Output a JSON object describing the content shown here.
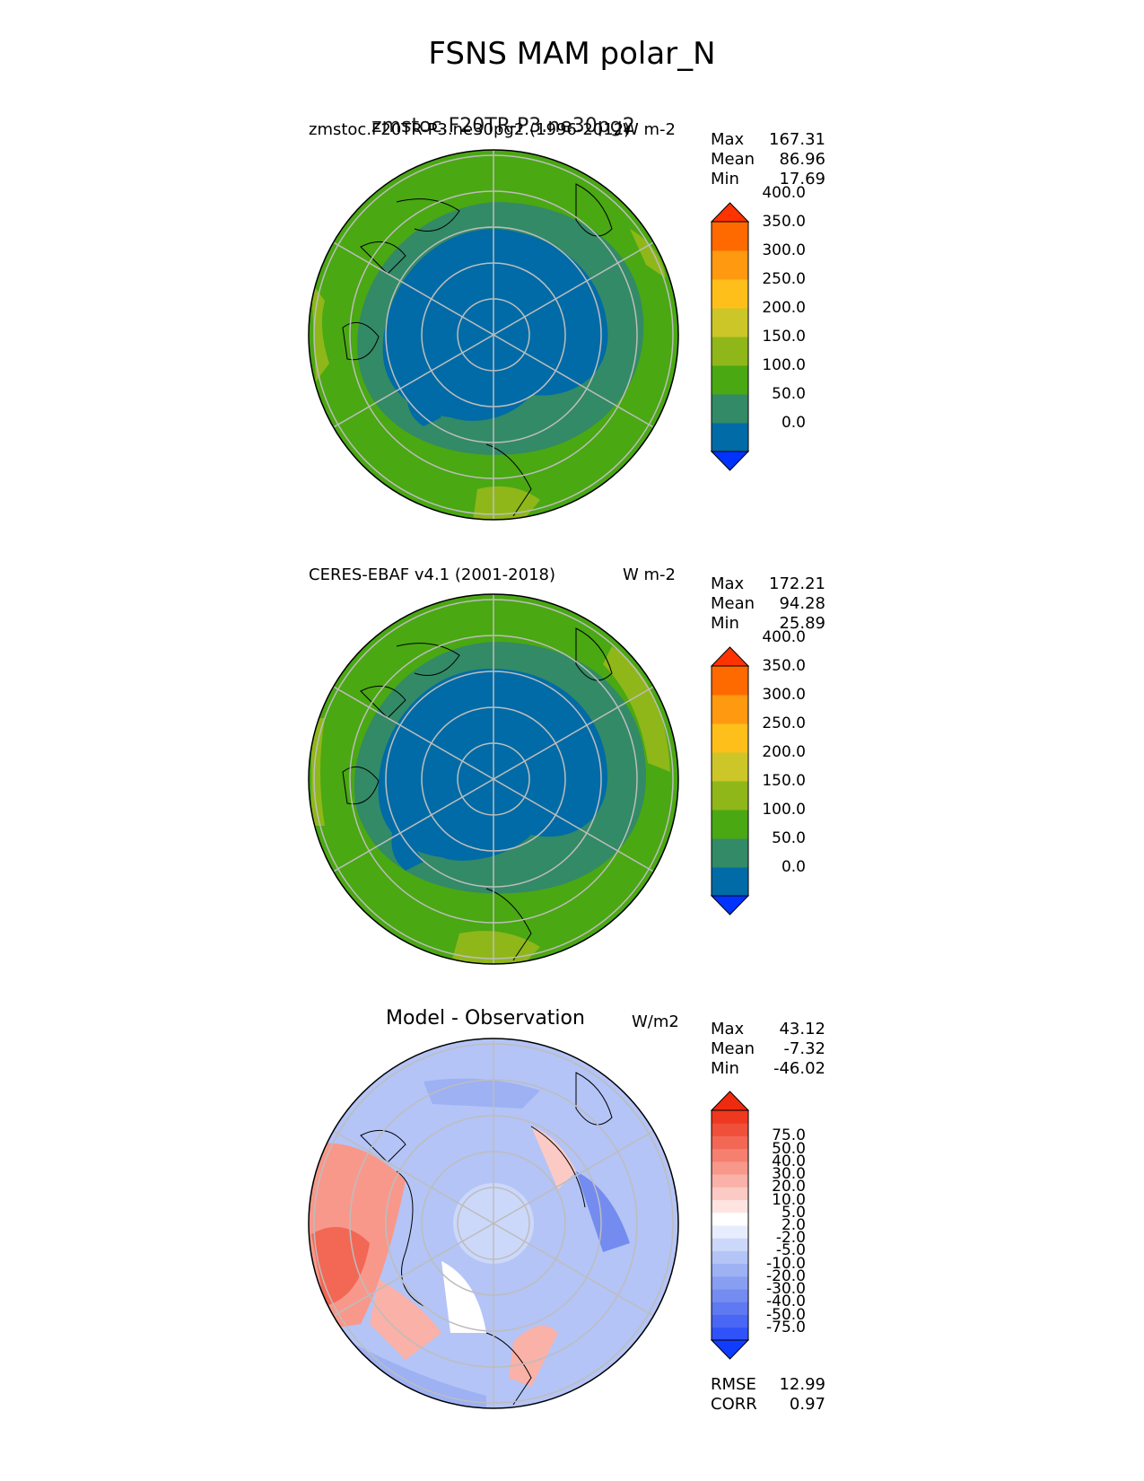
{
  "title": "FSNS MAM polar_N",
  "panels": [
    {
      "name": "test",
      "left_title": "zmstoc.F20TR-P3.ne30pg2.(1996-2012)",
      "left_title_overlay": "zmstoc.F20TR-P3.ne30pg2",
      "right_title": "W m-2",
      "stats": [
        {
          "label": "Max",
          "value": "167.31"
        },
        {
          "label": "Mean",
          "value": "86.96"
        },
        {
          "label": "Min",
          "value": "17.69"
        }
      ],
      "colorbar": {
        "colors": [
          "#0033ff",
          "#006ba6",
          "#338a66",
          "#4aa813",
          "#8fb719",
          "#ccc628",
          "#ffbf1a",
          "#ff9910",
          "#ff6a00",
          "#ff3300"
        ],
        "labels": [
          "0.0",
          "50.0",
          "100.0",
          "150.0",
          "200.0",
          "250.0",
          "300.0",
          "350.0",
          "400.0"
        ]
      }
    },
    {
      "name": "reference",
      "left_title": "CERES-EBAF v4.1 (2001-2018)",
      "right_title": "W m-2",
      "stats": [
        {
          "label": "Max",
          "value": "172.21"
        },
        {
          "label": "Mean",
          "value": "94.28"
        },
        {
          "label": "Min",
          "value": "25.89"
        }
      ],
      "colorbar": {
        "colors": [
          "#0033ff",
          "#006ba6",
          "#338a66",
          "#4aa813",
          "#8fb719",
          "#ccc628",
          "#ffbf1a",
          "#ff9910",
          "#ff6a00",
          "#ff3300"
        ],
        "labels": [
          "0.0",
          "50.0",
          "100.0",
          "150.0",
          "200.0",
          "250.0",
          "300.0",
          "350.0",
          "400.0"
        ]
      }
    },
    {
      "name": "diff",
      "center_title": "Model - Observation",
      "right_title": "W/m2",
      "stats": [
        {
          "label": "Max",
          "value": "43.12"
        },
        {
          "label": "Mean",
          "value": "-7.32"
        },
        {
          "label": "Min",
          "value": "-46.02"
        }
      ],
      "colorbar": {
        "colors": [
          "#0f3cff",
          "#3052fa",
          "#4a66f5",
          "#5f79f2",
          "#748cf0",
          "#889ef0",
          "#9db1f3",
          "#b4c4f6",
          "#ccd8fa",
          "#e8edfd",
          "#ffffff",
          "#fde4e1",
          "#fccac4",
          "#fab1a7",
          "#f8988b",
          "#f58070",
          "#f26855",
          "#f04f3a",
          "#ee3820",
          "#ee2b0e"
        ],
        "labels": [
          "-75.0",
          "-50.0",
          "-40.0",
          "-30.0",
          "-20.0",
          "-10.0",
          "-5.0",
          "-2.0",
          "2.0",
          "5.0",
          "10.0",
          "20.0",
          "30.0",
          "40.0",
          "50.0",
          "75.0"
        ]
      },
      "bottom_stats": [
        {
          "label": "RMSE",
          "value": "12.99"
        },
        {
          "label": "CORR",
          "value": "0.97"
        }
      ]
    }
  ]
}
